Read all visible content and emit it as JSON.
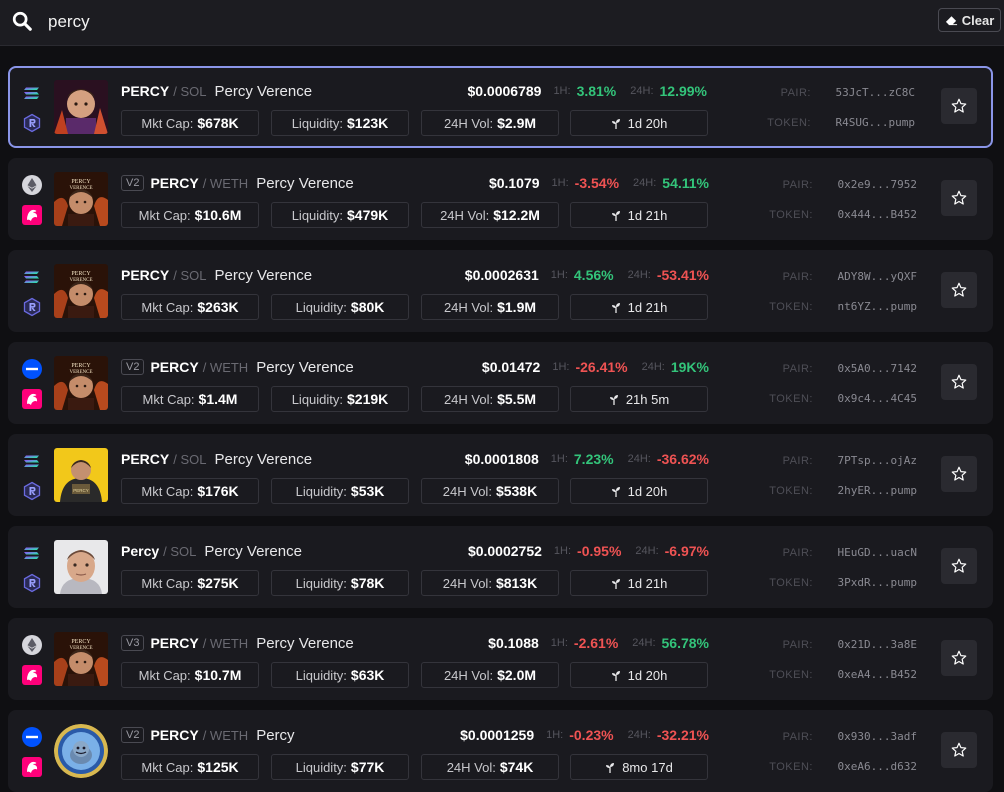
{
  "search": {
    "value": "percy",
    "clear_label": "Clear"
  },
  "labels": {
    "mkt_cap": "Mkt Cap:",
    "liquidity": "Liquidity:",
    "vol": "24H Vol:",
    "h1": "1H:",
    "h24": "24H:",
    "pair": "PAIR:",
    "token": "TOKEN:"
  },
  "colors": {
    "positive": "#33c47a",
    "negative": "#ef5353",
    "selected_border": "#8a95e8"
  },
  "results": [
    {
      "chain": "solana",
      "dex": "raydium",
      "avatar": "dark-portrait",
      "version": "",
      "symbol": "PERCY",
      "quote": "/ SOL",
      "name": "Percy Verence",
      "price": "$0.0006789",
      "h1": "3.81%",
      "h1_dir": "pos",
      "h24": "12.99%",
      "h24_dir": "pos",
      "mkt_cap": "$678K",
      "liquidity": "$123K",
      "vol": "$2.9M",
      "age": "1d 20h",
      "pair": "53JcT...zC8C",
      "token": "R4SUG...pump",
      "selected": true
    },
    {
      "chain": "ethereum",
      "dex": "uniswap",
      "avatar": "verence-poster",
      "version": "V2",
      "symbol": "PERCY",
      "quote": "/ WETH",
      "name": "Percy Verence",
      "price": "$0.1079",
      "h1": "-3.54%",
      "h1_dir": "neg",
      "h24": "54.11%",
      "h24_dir": "pos",
      "mkt_cap": "$10.6M",
      "liquidity": "$479K",
      "vol": "$12.2M",
      "age": "1d 21h",
      "pair": "0x2e9...7952",
      "token": "0x444...B452",
      "selected": false
    },
    {
      "chain": "solana",
      "dex": "raydium",
      "avatar": "verence-poster",
      "version": "",
      "symbol": "PERCY",
      "quote": "/ SOL",
      "name": "Percy Verence",
      "price": "$0.0002631",
      "h1": "4.56%",
      "h1_dir": "pos",
      "h24": "-53.41%",
      "h24_dir": "neg",
      "mkt_cap": "$263K",
      "liquidity": "$80K",
      "vol": "$1.9M",
      "age": "1d 21h",
      "pair": "ADY8W...yQXF",
      "token": "nt6YZ...pump",
      "selected": false
    },
    {
      "chain": "base",
      "dex": "uniswap",
      "avatar": "verence-poster",
      "version": "V2",
      "symbol": "PERCY",
      "quote": "/ WETH",
      "name": "Percy Verence",
      "price": "$0.01472",
      "h1": "-26.41%",
      "h1_dir": "neg",
      "h24": "19K%",
      "h24_dir": "pos",
      "mkt_cap": "$1.4M",
      "liquidity": "$219K",
      "vol": "$5.5M",
      "age": "21h 5m",
      "pair": "0x5A0...7142",
      "token": "0x9c4...4C45",
      "selected": false
    },
    {
      "chain": "solana",
      "dex": "raydium",
      "avatar": "yellow-poster",
      "version": "",
      "symbol": "PERCY",
      "quote": "/ SOL",
      "name": "Percy Verence",
      "price": "$0.0001808",
      "h1": "7.23%",
      "h1_dir": "pos",
      "h24": "-36.62%",
      "h24_dir": "neg",
      "mkt_cap": "$176K",
      "liquidity": "$53K",
      "vol": "$538K",
      "age": "1d 20h",
      "pair": "7PTsp...ojAz",
      "token": "2hyER...pump",
      "selected": false
    },
    {
      "chain": "solana",
      "dex": "raydium",
      "avatar": "light-portrait",
      "version": "",
      "symbol": "Percy",
      "quote": "/ SOL",
      "name": "Percy Verence",
      "price": "$0.0002752",
      "h1": "-0.95%",
      "h1_dir": "neg",
      "h24": "-6.97%",
      "h24_dir": "neg",
      "mkt_cap": "$275K",
      "liquidity": "$78K",
      "vol": "$813K",
      "age": "1d 21h",
      "pair": "HEuGD...uacN",
      "token": "3PxdR...pump",
      "selected": false
    },
    {
      "chain": "ethereum",
      "dex": "uniswap",
      "avatar": "verence-poster",
      "version": "V3",
      "symbol": "PERCY",
      "quote": "/ WETH",
      "name": "Percy Verence",
      "price": "$0.1088",
      "h1": "-2.61%",
      "h1_dir": "neg",
      "h24": "56.78%",
      "h24_dir": "pos",
      "mkt_cap": "$10.7M",
      "liquidity": "$63K",
      "vol": "$2.0M",
      "age": "1d 20h",
      "pair": "0x21D...3a8E",
      "token": "0xeA4...B452",
      "selected": false
    },
    {
      "chain": "base",
      "dex": "uniswap",
      "avatar": "blue-coin",
      "version": "V2",
      "symbol": "PERCY",
      "quote": "/ WETH",
      "name": "Percy",
      "price": "$0.0001259",
      "h1": "-0.23%",
      "h1_dir": "neg",
      "h24": "-32.21%",
      "h24_dir": "neg",
      "mkt_cap": "$125K",
      "liquidity": "$77K",
      "vol": "$74K",
      "age": "8mo 17d",
      "pair": "0x930...3adf",
      "token": "0xeA6...d632",
      "selected": false
    }
  ]
}
